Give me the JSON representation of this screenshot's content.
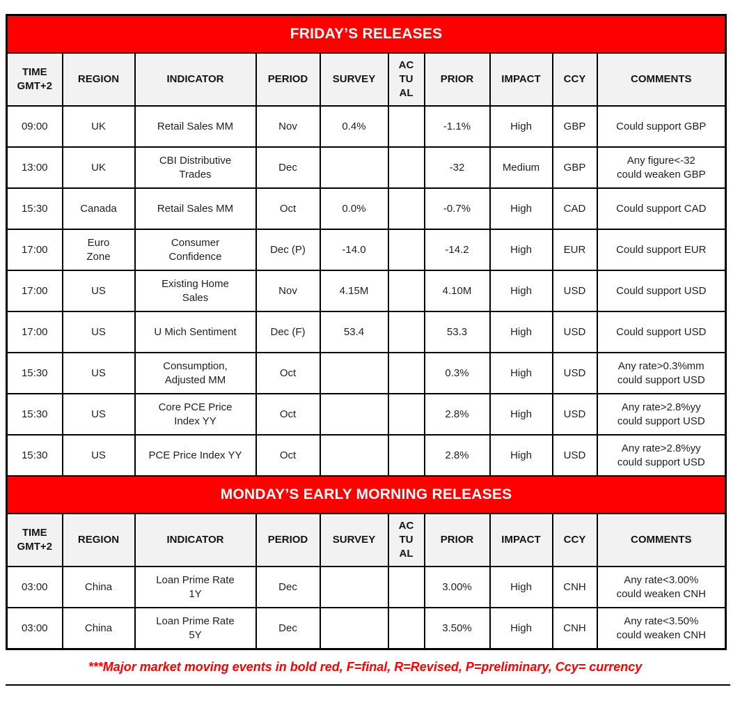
{
  "colors": {
    "banner_background": "#ff0000",
    "banner_text": "#ffffff",
    "header_background": "#f2f2f2",
    "border": "#000000",
    "footnote_text": "#ff0000"
  },
  "sections": [
    {
      "title": "FRIDAY’S RELEASES",
      "columns": [
        "TIME\nGMT+2",
        "REGION",
        "INDICATOR",
        "PERIOD",
        "SURVEY",
        "ACTUAL",
        "PRIOR",
        "IMPACT",
        "CCY",
        "COMMENTS"
      ],
      "rows": [
        {
          "time": "09:00",
          "region": "UK",
          "indicator": "Retail Sales MM",
          "period": "Nov",
          "survey": "0.4%",
          "actual": "",
          "prior": "-1.1%",
          "impact": "High",
          "ccy": "GBP",
          "comments": "Could support GBP"
        },
        {
          "time": "13:00",
          "region": "UK",
          "indicator": "CBI Distributive\nTrades",
          "period": "Dec",
          "survey": "",
          "actual": "",
          "prior": "-32",
          "impact": "Medium",
          "ccy": "GBP",
          "comments": "Any figure<-32\ncould weaken GBP"
        },
        {
          "time": "15:30",
          "region": "Canada",
          "indicator": "Retail Sales MM",
          "period": "Oct",
          "survey": "0.0%",
          "actual": "",
          "prior": "-0.7%",
          "impact": "High",
          "ccy": "CAD",
          "comments": "Could support CAD"
        },
        {
          "time": "17:00",
          "region": "Euro\nZone",
          "indicator": "Consumer\nConfidence",
          "period": "Dec (P)",
          "survey": "-14.0",
          "actual": "",
          "prior": "-14.2",
          "impact": "High",
          "ccy": "EUR",
          "comments": "Could support EUR"
        },
        {
          "time": "17:00",
          "region": "US",
          "indicator": "Existing Home\nSales",
          "period": "Nov",
          "survey": "4.15M",
          "actual": "",
          "prior": "4.10M",
          "impact": "High",
          "ccy": "USD",
          "comments": "Could support USD"
        },
        {
          "time": "17:00",
          "region": "US",
          "indicator": "U Mich Sentiment",
          "period": "Dec (F)",
          "survey": "53.4",
          "actual": "",
          "prior": "53.3",
          "impact": "High",
          "ccy": "USD",
          "comments": "Could support USD"
        },
        {
          "time": "15:30",
          "region": "US",
          "indicator": "Consumption,\nAdjusted MM",
          "period": "Oct",
          "survey": "",
          "actual": "",
          "prior": "0.3%",
          "impact": "High",
          "ccy": "USD",
          "comments": "Any rate>0.3%mm\ncould support USD"
        },
        {
          "time": "15:30",
          "region": "US",
          "indicator": "Core PCE Price\nIndex YY",
          "period": "Oct",
          "survey": "",
          "actual": "",
          "prior": "2.8%",
          "impact": "High",
          "ccy": "USD",
          "comments": "Any rate>2.8%yy\ncould support USD"
        },
        {
          "time": "15:30",
          "region": "US",
          "indicator": "PCE Price Index YY",
          "period": "Oct",
          "survey": "",
          "actual": "",
          "prior": "2.8%",
          "impact": "High",
          "ccy": "USD",
          "comments": "Any rate>2.8%yy\ncould support USD"
        }
      ]
    },
    {
      "title": "MONDAY’S EARLY MORNING RELEASES",
      "columns": [
        "TIME\nGMT+2",
        "REGION",
        "INDICATOR",
        "PERIOD",
        "SURVEY",
        "ACTUAL",
        "PRIOR",
        "IMPACT",
        "CCY",
        "COMMENTS"
      ],
      "rows": [
        {
          "time": "03:00",
          "region": "China",
          "indicator": "Loan Prime Rate\n1Y",
          "period": "Dec",
          "survey": "",
          "actual": "",
          "prior": "3.00%",
          "impact": "High",
          "ccy": "CNH",
          "comments": "Any rate<3.00%\ncould weaken CNH"
        },
        {
          "time": "03:00",
          "region": "China",
          "indicator": "Loan Prime Rate\n5Y",
          "period": "Dec",
          "survey": "",
          "actual": "",
          "prior": "3.50%",
          "impact": "High",
          "ccy": "CNH",
          "comments": "Any rate<3.50%\ncould weaken CNH"
        }
      ]
    }
  ],
  "footnote": "***Major market moving events in bold red, F=final, R=Revised, P=preliminary, Ccy= currency"
}
